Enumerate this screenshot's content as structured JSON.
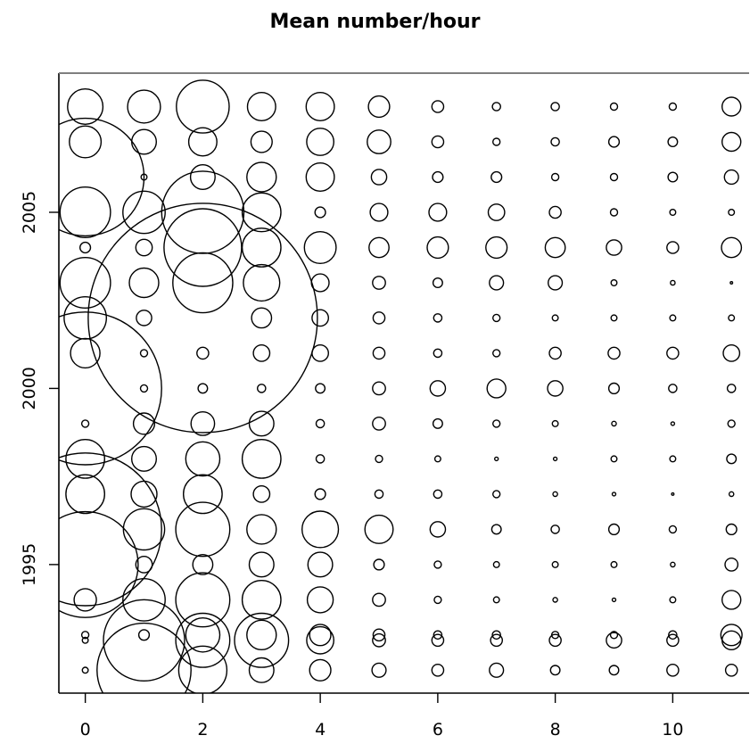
{
  "chart_data": {
    "type": "scatter",
    "title": "Mean number/hour",
    "xlabel": "",
    "ylabel": "",
    "xlim": [
      -0.45,
      11.3
    ],
    "ylim": [
      1991.35,
      2008.95
    ],
    "x_ticks": [
      0,
      2,
      4,
      6,
      8,
      10
    ],
    "y_ticks": [
      1995,
      2000,
      2005
    ],
    "x_tick_labels": [
      "0",
      "2",
      "4",
      "6",
      "8",
      "10"
    ],
    "y_tick_labels": [
      "1995",
      "2000",
      "2005"
    ],
    "marker": "open-circle",
    "size_encodes": "mean number per hour (relative circle radius in data units)",
    "series": [
      {
        "year": 2008,
        "x": [
          0,
          1,
          2,
          3,
          4,
          5,
          6,
          7,
          8,
          9,
          10,
          11
        ],
        "r": [
          0.3,
          0.28,
          0.45,
          0.24,
          0.24,
          0.18,
          0.1,
          0.07,
          0.07,
          0.06,
          0.06,
          0.16
        ]
      },
      {
        "year": 2007,
        "x": [
          0,
          1,
          2,
          3,
          4,
          5,
          6,
          7,
          8,
          9,
          10,
          11
        ],
        "r": [
          0.27,
          0.21,
          0.24,
          0.18,
          0.23,
          0.2,
          0.1,
          0.06,
          0.07,
          0.09,
          0.08,
          0.16
        ]
      },
      {
        "year": 2006,
        "x": [
          0,
          1,
          2,
          3,
          4,
          5,
          6,
          7,
          8,
          9,
          10,
          11
        ],
        "r": [
          1.0,
          0.05,
          0.21,
          0.25,
          0.24,
          0.13,
          0.09,
          0.09,
          0.06,
          0.06,
          0.08,
          0.12
        ]
      },
      {
        "year": 2005,
        "x": [
          0,
          1,
          2,
          3,
          4,
          5,
          6,
          7,
          8,
          9,
          10,
          11
        ],
        "r": [
          0.43,
          0.36,
          0.7,
          0.33,
          0.09,
          0.15,
          0.15,
          0.14,
          0.1,
          0.06,
          0.05,
          0.05
        ]
      },
      {
        "year": 2004,
        "x": [
          0,
          1,
          2,
          3,
          4,
          5,
          6,
          7,
          8,
          9,
          10,
          11
        ],
        "r": [
          0.09,
          0.14,
          0.66,
          0.33,
          0.27,
          0.17,
          0.18,
          0.18,
          0.17,
          0.13,
          0.1,
          0.17
        ]
      },
      {
        "year": 2003,
        "x": [
          0,
          1,
          2,
          3,
          4,
          5,
          6,
          7,
          8,
          9,
          10,
          11
        ],
        "r": [
          0.43,
          0.25,
          0.51,
          0.31,
          0.15,
          0.11,
          0.08,
          0.12,
          0.12,
          0.05,
          0.04,
          0.02
        ]
      },
      {
        "year": 2002,
        "x": [
          0,
          1,
          2,
          3,
          4,
          5,
          6,
          7,
          8,
          9,
          10,
          11
        ],
        "r": [
          0.36,
          0.13,
          1.95,
          0.17,
          0.14,
          0.1,
          0.07,
          0.06,
          0.05,
          0.05,
          0.05,
          0.05
        ]
      },
      {
        "year": 2001,
        "x": [
          0,
          1,
          2,
          3,
          4,
          5,
          6,
          7,
          8,
          9,
          10,
          11
        ],
        "r": [
          0.25,
          0.06,
          0.1,
          0.14,
          0.14,
          0.1,
          0.07,
          0.06,
          0.1,
          0.1,
          0.1,
          0.14
        ]
      },
      {
        "year": 2000,
        "x": [
          0,
          1,
          2,
          3,
          4,
          5,
          6,
          7,
          8,
          9,
          10,
          11
        ],
        "r": [
          1.3,
          0.06,
          0.08,
          0.07,
          0.08,
          0.11,
          0.13,
          0.16,
          0.13,
          0.09,
          0.07,
          0.07
        ]
      },
      {
        "year": 1999,
        "x": [
          0,
          1,
          2,
          3,
          4,
          5,
          6,
          7,
          8,
          9,
          10,
          11
        ],
        "r": [
          0.06,
          0.18,
          0.2,
          0.21,
          0.07,
          0.11,
          0.08,
          0.06,
          0.05,
          0.04,
          0.03,
          0.06
        ]
      },
      {
        "year": 1998,
        "x": [
          0,
          1,
          2,
          3,
          4,
          5,
          6,
          7,
          8,
          9,
          10,
          11
        ],
        "r": [
          0.33,
          0.21,
          0.29,
          0.33,
          0.07,
          0.06,
          0.05,
          0.03,
          0.03,
          0.05,
          0.05,
          0.08
        ]
      },
      {
        "year": 1997,
        "x": [
          0,
          1,
          2,
          3,
          4,
          5,
          6,
          7,
          8,
          9,
          10,
          11
        ],
        "r": [
          0.33,
          0.22,
          0.33,
          0.14,
          0.09,
          0.07,
          0.07,
          0.06,
          0.04,
          0.03,
          0.02,
          0.04
        ]
      },
      {
        "year": 1996,
        "x": [
          0,
          1,
          2,
          3,
          4,
          5,
          6,
          7,
          8,
          9,
          10,
          11
        ],
        "r": [
          1.3,
          0.35,
          0.46,
          0.25,
          0.31,
          0.24,
          0.13,
          0.08,
          0.07,
          0.09,
          0.06,
          0.09
        ]
      },
      {
        "year": 1995,
        "x": [
          0,
          1,
          2,
          3,
          4,
          5,
          6,
          7,
          8,
          9,
          10,
          11
        ],
        "r": [
          0.9,
          0.14,
          0.17,
          0.21,
          0.21,
          0.09,
          0.06,
          0.05,
          0.05,
          0.05,
          0.04,
          0.11
        ]
      },
      {
        "year": 1994,
        "x": [
          0,
          1,
          2,
          3,
          4,
          5,
          6,
          7,
          8,
          9,
          10,
          11
        ],
        "r": [
          0.19,
          0.36,
          0.46,
          0.33,
          0.22,
          0.11,
          0.06,
          0.05,
          0.04,
          0.03,
          0.05,
          0.16
        ]
      },
      {
        "year": 1993,
        "x": [
          0,
          1,
          2,
          3,
          4,
          5,
          6,
          7,
          8,
          9,
          10,
          11
        ],
        "r": [
          0.06,
          0.09,
          0.29,
          0.25,
          0.18,
          0.1,
          0.07,
          0.07,
          0.06,
          0.06,
          0.07,
          0.18
        ]
      },
      {
        "year": 1992.85,
        "x": [
          0,
          1,
          2,
          3,
          4,
          5,
          6,
          7,
          8,
          9,
          10,
          11
        ],
        "r": [
          0.05,
          0.69,
          0.46,
          0.46,
          0.23,
          0.11,
          0.1,
          0.1,
          0.1,
          0.13,
          0.1,
          0.16
        ]
      },
      {
        "year": 1992,
        "x": [
          0,
          1,
          2,
          3,
          4,
          5,
          6,
          7,
          8,
          9,
          10,
          11
        ],
        "r": [
          0.05,
          0.8,
          0.41,
          0.21,
          0.18,
          0.12,
          0.1,
          0.12,
          0.08,
          0.08,
          0.1,
          0.1
        ]
      }
    ]
  }
}
